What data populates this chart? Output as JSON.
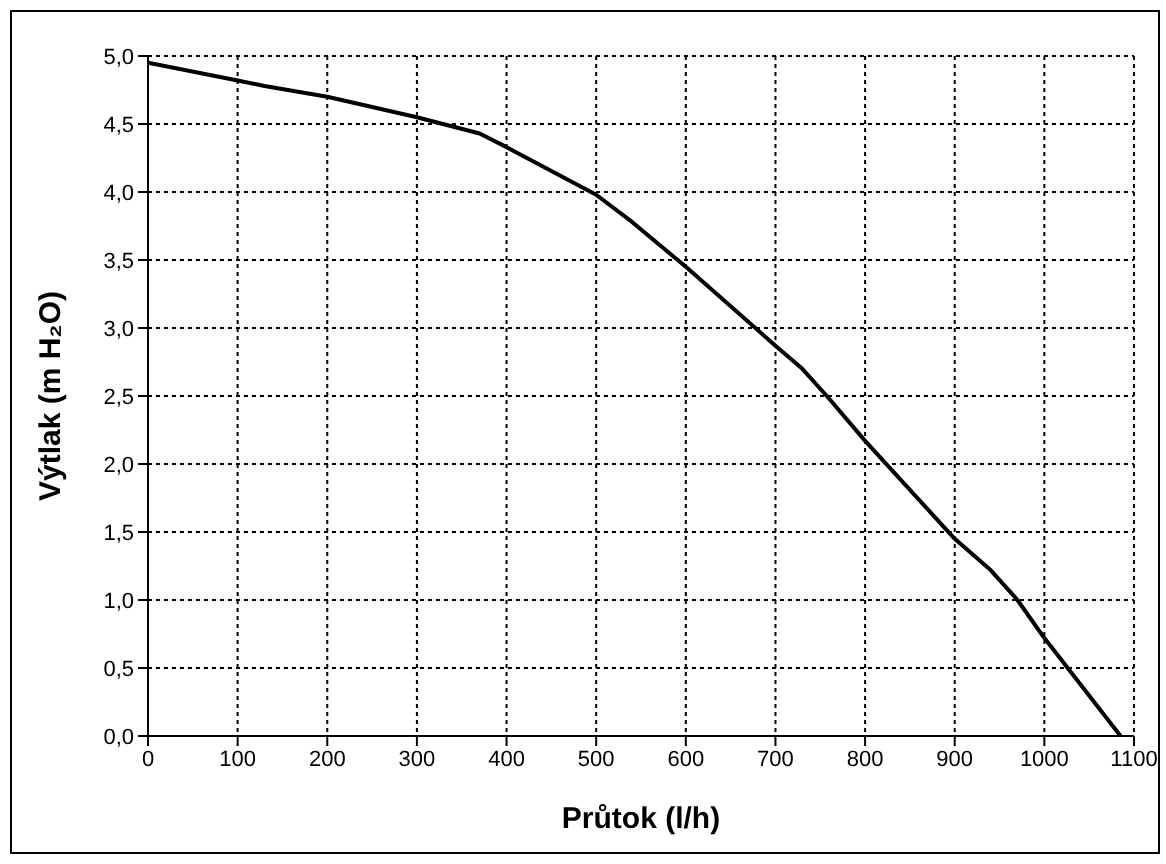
{
  "chart_data": {
    "type": "line",
    "xlabel": "Průtok (l/h)",
    "ylabel": "Výtlak (m H₂O)",
    "x": [
      0,
      100,
      130,
      200,
      300,
      370,
      400,
      500,
      540,
      600,
      700,
      730,
      760,
      800,
      900,
      940,
      970,
      1000,
      1085
    ],
    "series": [
      {
        "color": "#000000",
        "values": [
          4.95,
          4.82,
          4.78,
          4.7,
          4.55,
          4.43,
          4.33,
          3.98,
          3.78,
          3.45,
          2.87,
          2.7,
          2.48,
          2.17,
          1.45,
          1.22,
          1.0,
          0.72,
          0.0
        ]
      }
    ],
    "xlim": [
      0,
      1100
    ],
    "xticks": [
      0,
      100,
      200,
      300,
      400,
      500,
      600,
      700,
      800,
      900,
      1000,
      1100
    ],
    "ylim": [
      0,
      5
    ],
    "yticks": [
      {
        "value": 0,
        "label": "0,0"
      },
      {
        "value": 0.5,
        "label": "0,5"
      },
      {
        "value": 1,
        "label": "1,0"
      },
      {
        "value": 1.5,
        "label": "1,5"
      },
      {
        "value": 2,
        "label": "2,0"
      },
      {
        "value": 2.5,
        "label": "2,5"
      },
      {
        "value": 3,
        "label": "3,0"
      },
      {
        "value": 3.5,
        "label": "3,5"
      },
      {
        "value": 4,
        "label": "4,0"
      },
      {
        "value": 4.5,
        "label": "4,5"
      },
      {
        "value": 5,
        "label": "5,0"
      }
    ],
    "grid": true,
    "marker": "none",
    "line_style": "solid"
  }
}
